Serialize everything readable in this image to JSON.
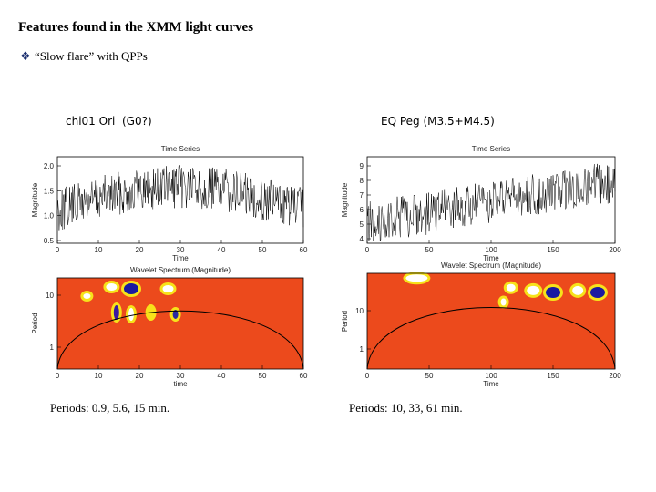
{
  "header": {
    "title": "Features found in the XMM light curves",
    "bullet": "“Slow flare” with QPPs"
  },
  "panels": [
    {
      "star": "chi01 Ori  (G0?)",
      "time_series": {
        "title": "Time Series",
        "ylabel": "Magnitude",
        "xlabel": "Time",
        "yticks": [
          "0.5",
          "1.0",
          "1.5",
          "2.0"
        ],
        "xticks": [
          "0",
          "10",
          "20",
          "30",
          "40",
          "50",
          "60"
        ]
      },
      "wavelet": {
        "title": "Wavelet Spectrum (Magnitude)",
        "ylabel": "Period",
        "xlabel": "time",
        "yticks": [
          "1",
          "10"
        ],
        "xticks": [
          "0",
          "10",
          "20",
          "30",
          "40",
          "50",
          "60"
        ]
      },
      "periods": "Periods: 0.9, 5.6, 15 min."
    },
    {
      "star": "EQ Peg (M3.5+M4.5)",
      "time_series": {
        "title": "Time Series",
        "ylabel": "Magnitude",
        "xlabel": "Time",
        "yticks": [
          "4",
          "5",
          "6",
          "7",
          "8",
          "9"
        ],
        "xticks": [
          "0",
          "50",
          "100",
          "150",
          "200"
        ]
      },
      "wavelet": {
        "title": "Wavelet Spectrum (Magnitude)",
        "ylabel": "Period",
        "xlabel": "Time",
        "yticks": [
          "1",
          "10"
        ],
        "xticks": [
          "0",
          "50",
          "100",
          "150",
          "200"
        ]
      },
      "periods": "Periods: 10, 33, 61 min."
    }
  ]
}
